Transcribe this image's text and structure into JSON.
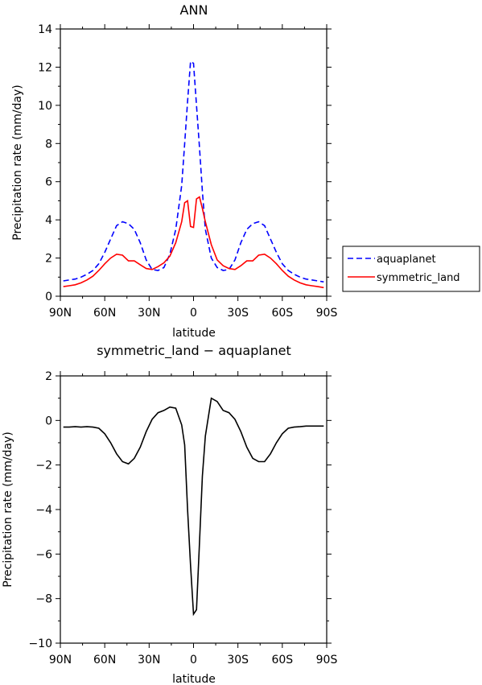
{
  "chart_data": [
    {
      "type": "line",
      "title": "ANN",
      "xlabel": "latitude",
      "ylabel": "Precipitation rate (mm/day)",
      "x_ticks": [
        "90N",
        "60N",
        "30N",
        "0",
        "30S",
        "60S",
        "90S"
      ],
      "y_ticks": [
        "0",
        "2",
        "4",
        "6",
        "8",
        "10",
        "12",
        "14"
      ],
      "xlim": [
        90,
        -90
      ],
      "ylim": [
        0,
        14
      ],
      "legend_position": "right",
      "series": [
        {
          "name": "aquaplanet",
          "color": "#0000ff",
          "style": "dashed",
          "x": [
            88,
            84,
            80,
            76,
            72,
            68,
            64,
            60,
            56,
            52,
            48,
            44,
            40,
            36,
            32,
            28,
            24,
            20,
            16,
            12,
            8,
            6,
            4,
            2,
            0,
            -2,
            -4,
            -6,
            -8,
            -12,
            -16,
            -20,
            -24,
            -28,
            -32,
            -36,
            -40,
            -44,
            -48,
            -52,
            -56,
            -60,
            -64,
            -68,
            -72,
            -76,
            -80,
            -84,
            -88
          ],
          "y": [
            0.8,
            0.85,
            0.9,
            1.0,
            1.15,
            1.35,
            1.7,
            2.3,
            3.0,
            3.7,
            3.9,
            3.8,
            3.5,
            2.8,
            1.9,
            1.4,
            1.35,
            1.5,
            2.2,
            3.5,
            5.8,
            8.0,
            10.2,
            12.3,
            12.2,
            10.0,
            7.8,
            5.5,
            3.5,
            2.0,
            1.5,
            1.35,
            1.4,
            1.9,
            2.8,
            3.5,
            3.8,
            3.9,
            3.7,
            3.0,
            2.3,
            1.7,
            1.35,
            1.15,
            1.0,
            0.9,
            0.85,
            0.8,
            0.75
          ]
        },
        {
          "name": "symmetric_land",
          "color": "#ff0000",
          "style": "solid",
          "x": [
            88,
            84,
            80,
            76,
            72,
            68,
            64,
            60,
            56,
            52,
            48,
            44,
            40,
            36,
            32,
            28,
            24,
            20,
            16,
            12,
            8,
            6,
            4,
            2,
            0,
            -2,
            -4,
            -6,
            -8,
            -12,
            -16,
            -20,
            -24,
            -28,
            -32,
            -36,
            -40,
            -44,
            -48,
            -52,
            -56,
            -60,
            -64,
            -68,
            -72,
            -76,
            -80,
            -84,
            -88
          ],
          "y": [
            0.5,
            0.55,
            0.6,
            0.7,
            0.85,
            1.05,
            1.35,
            1.7,
            2.0,
            2.2,
            2.15,
            1.85,
            1.85,
            1.65,
            1.45,
            1.4,
            1.55,
            1.75,
            2.1,
            2.8,
            3.9,
            4.9,
            5.0,
            3.65,
            3.6,
            5.1,
            5.2,
            4.6,
            3.9,
            2.7,
            1.9,
            1.6,
            1.45,
            1.4,
            1.6,
            1.85,
            1.85,
            2.15,
            2.2,
            2.0,
            1.7,
            1.35,
            1.05,
            0.85,
            0.7,
            0.6,
            0.55,
            0.5,
            0.45
          ]
        }
      ]
    },
    {
      "type": "line",
      "title": "symmetric_land − aquaplanet",
      "xlabel": "latitude",
      "ylabel": "Precipitation rate (mm/day)",
      "x_ticks": [
        "90N",
        "60N",
        "30N",
        "0",
        "30S",
        "60S",
        "90S"
      ],
      "y_ticks": [
        "−10",
        "−8",
        "−6",
        "−4",
        "−2",
        "0",
        "2"
      ],
      "xlim": [
        90,
        -90
      ],
      "ylim": [
        -10,
        2
      ],
      "series": [
        {
          "color": "#000000",
          "style": "solid",
          "x": [
            88,
            84,
            80,
            76,
            72,
            68,
            64,
            60,
            56,
            52,
            48,
            44,
            40,
            36,
            32,
            28,
            24,
            20,
            16,
            12,
            8,
            6,
            4,
            2,
            0,
            -2,
            -4,
            -6,
            -8,
            -12,
            -16,
            -20,
            -24,
            -28,
            -32,
            -36,
            -40,
            -44,
            -48,
            -52,
            -56,
            -60,
            -64,
            -68,
            -72,
            -76,
            -80,
            -84,
            -88
          ],
          "y": [
            -0.3,
            -0.3,
            -0.28,
            -0.3,
            -0.28,
            -0.3,
            -0.35,
            -0.6,
            -1.0,
            -1.5,
            -1.85,
            -1.95,
            -1.7,
            -1.2,
            -0.5,
            0.05,
            0.35,
            0.45,
            0.6,
            0.55,
            -0.2,
            -1.1,
            -4.0,
            -6.5,
            -8.7,
            -8.5,
            -5.5,
            -2.5,
            -0.7,
            1.0,
            0.85,
            0.45,
            0.35,
            0.05,
            -0.5,
            -1.2,
            -1.7,
            -1.85,
            -1.85,
            -1.5,
            -1.0,
            -0.6,
            -0.35,
            -0.3,
            -0.28,
            -0.25,
            -0.25,
            -0.25,
            -0.25
          ]
        }
      ]
    }
  ]
}
